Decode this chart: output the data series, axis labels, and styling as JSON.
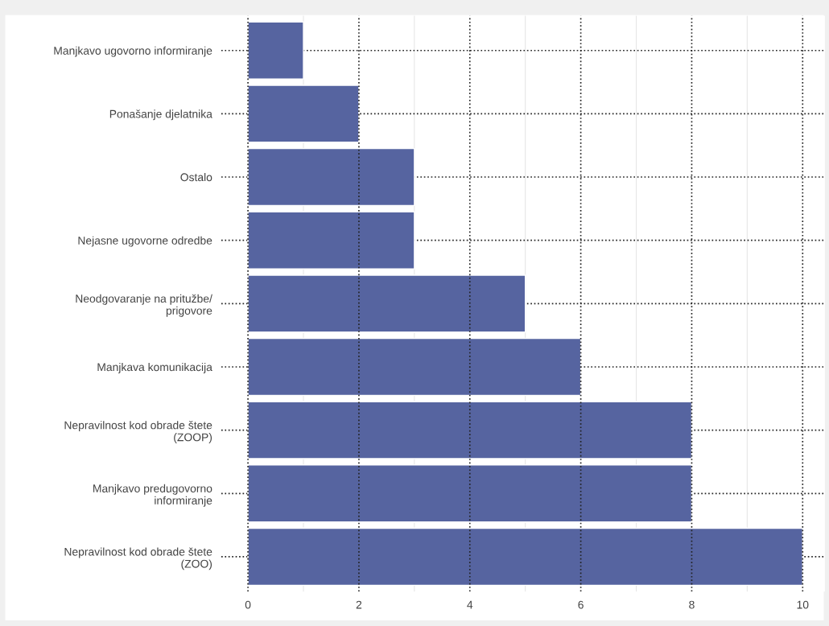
{
  "chart_data": {
    "type": "bar",
    "orientation": "horizontal",
    "categories": [
      "Manjkavo ugovorno informiranje",
      "Ponašanje djelatnika",
      "Ostalo",
      "Nejasne ugovorne odredbe",
      "Neodgovaranje na pritužbe/\nprigovore",
      "Manjkava komunikacija",
      "Nepravilnost kod obrade štete\n(ZOOP)",
      "Manjkavo predugovorno\ninformiranje",
      "Nepravilnost kod obrade štete\n(ZOO)"
    ],
    "values": [
      1,
      2,
      3,
      3,
      5,
      6,
      8,
      8,
      10
    ],
    "color": "#5664a0",
    "xlim": [
      -0.48,
      10.4
    ],
    "xticks": [
      0,
      {
        "value": 1,
        "label": null
      },
      2,
      {
        "value": 3,
        "label": null
      },
      4,
      {
        "value": 5,
        "label": null
      },
      6,
      {
        "value": 7,
        "label": null
      },
      8,
      {
        "value": 9,
        "label": null
      },
      10
    ],
    "grid": true
  }
}
